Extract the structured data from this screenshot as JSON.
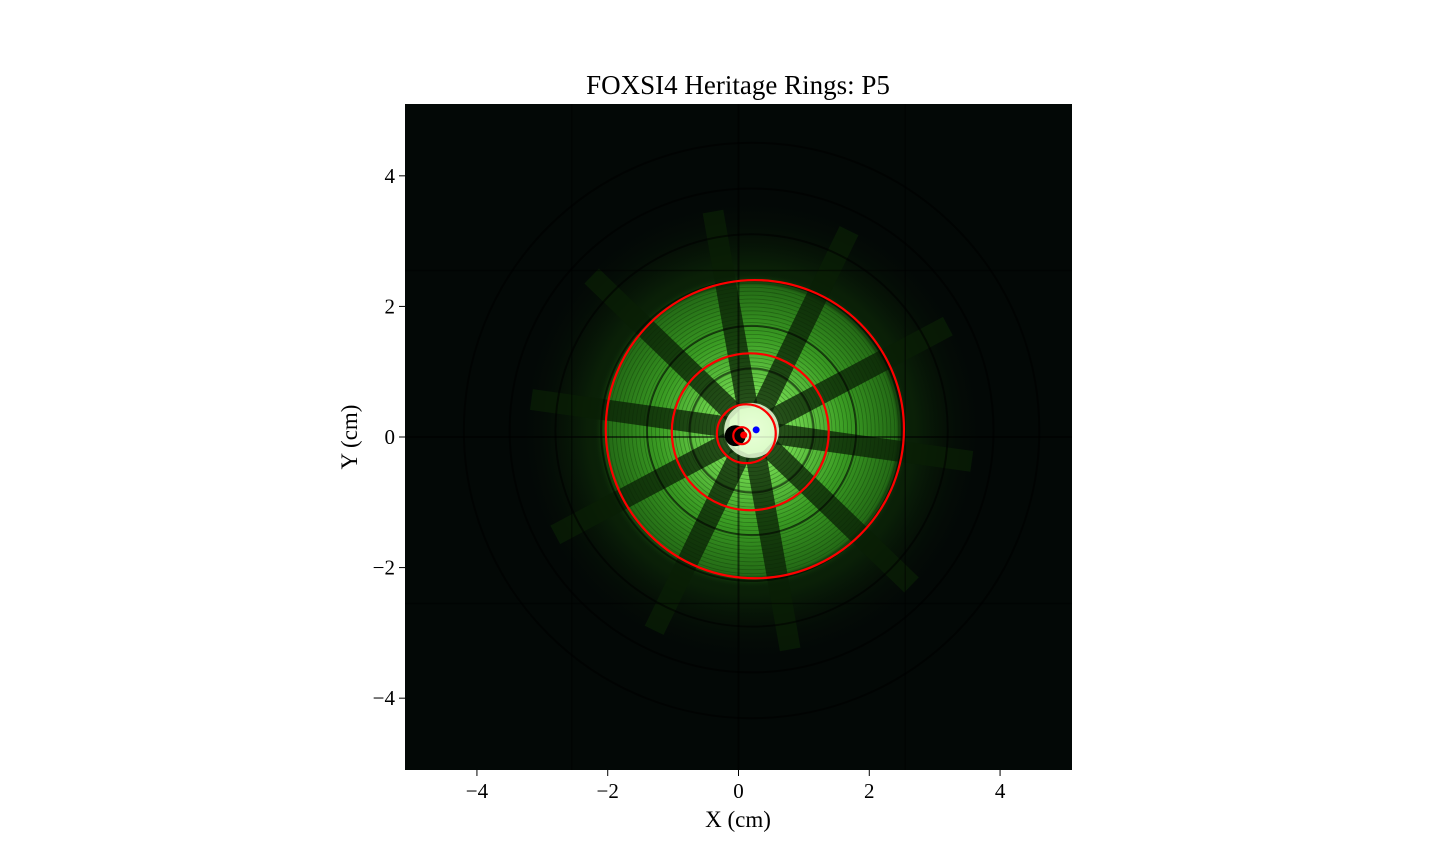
{
  "chart_data": {
    "type": "scatter",
    "title": "FOXSI4 Heritage Rings: P5",
    "xlabel": "X (cm)",
    "ylabel": "Y (cm)",
    "xlim": [
      -5.1,
      5.1
    ],
    "ylim": [
      -5.1,
      5.1
    ],
    "xticks": [
      -4,
      -2,
      0,
      2,
      4
    ],
    "yticks": [
      -4,
      -2,
      0,
      2,
      4
    ],
    "xtick_labels": [
      "−4",
      "−2",
      "0",
      "2",
      "4"
    ],
    "ytick_labels": [
      "−4",
      "−2",
      "0",
      "2",
      "4"
    ],
    "background": "green-channel image of nested X-ray optic shell rings",
    "grid": false,
    "rings": [
      {
        "cx": 0.25,
        "cy": 0.12,
        "r": 2.28,
        "color": "#ff0000"
      },
      {
        "cx": 0.18,
        "cy": 0.08,
        "r": 1.2,
        "color": "#ff0000"
      },
      {
        "cx": 0.12,
        "cy": 0.05,
        "r": 0.45,
        "color": "#ff0000"
      },
      {
        "cx": 0.05,
        "cy": 0.02,
        "r": 0.13,
        "color": "#ff0000"
      }
    ],
    "points": [
      {
        "x": 0.27,
        "y": 0.11,
        "color": "#0000ff"
      },
      {
        "x": 0.08,
        "y": 0.03,
        "color": "#ff0000"
      }
    ],
    "colors": {
      "ring": "#ff0000",
      "image_glow": "#5bd635",
      "image_background": "#030806"
    }
  }
}
